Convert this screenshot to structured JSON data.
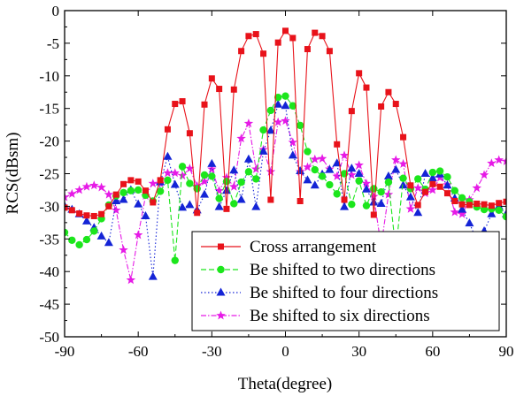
{
  "chart_data": {
    "type": "line",
    "title": "",
    "xlabel": "Theta(degree)",
    "ylabel": "RCS(dBsm)",
    "xlim": [
      -90,
      90
    ],
    "ylim": [
      -50,
      0
    ],
    "xticks": [
      -90,
      -60,
      -30,
      0,
      30,
      60,
      90
    ],
    "yticks": [
      0,
      -5,
      -10,
      -15,
      -20,
      -25,
      -30,
      -35,
      -40,
      -45,
      -50
    ],
    "xtick_labels": [
      "-90",
      "-60",
      "-30",
      "0",
      "30",
      "60",
      "90"
    ],
    "ytick_labels": [
      "0",
      "-5",
      "-10",
      "-15",
      "-20",
      "-25",
      "-30",
      "-35",
      "-40",
      "-45",
      "-50"
    ],
    "grid": false,
    "legend_position": "bottom-right",
    "series": [
      {
        "name": "Cross arrangement",
        "color": "#e8121a",
        "marker": "square",
        "line": "solid",
        "x": [
          -90,
          -87,
          -84,
          -81,
          -78,
          -75,
          -72,
          -69,
          -66,
          -63,
          -60,
          -57,
          -54,
          -51,
          -48,
          -45,
          -42,
          -39,
          -36,
          -33,
          -30,
          -27,
          -24,
          -21,
          -18,
          -15,
          -12,
          -9,
          -6,
          -3,
          0,
          3,
          6,
          9,
          12,
          15,
          18,
          21,
          24,
          27,
          30,
          33,
          36,
          39,
          42,
          45,
          48,
          51,
          54,
          57,
          60,
          63,
          66,
          69,
          72,
          75,
          78,
          81,
          84,
          87,
          90
        ],
        "y": [
          -30.2,
          -30.6,
          -31.1,
          -31.4,
          -31.5,
          -31.2,
          -30.0,
          -28.2,
          -26.6,
          -26.0,
          -26.2,
          -27.6,
          -29.4,
          -26.0,
          -18.2,
          -14.3,
          -13.9,
          -18.8,
          -31.0,
          -14.4,
          -10.4,
          -12.0,
          -30.4,
          -12.1,
          -6.2,
          -3.9,
          -3.6,
          -6.6,
          -29.0,
          -4.9,
          -3.1,
          -4.2,
          -29.2,
          -5.9,
          -3.4,
          -3.9,
          -6.2,
          -20.5,
          -29.0,
          -15.4,
          -9.6,
          -11.8,
          -31.3,
          -14.7,
          -12.5,
          -14.3,
          -19.4,
          -26.8,
          -29.8,
          -27.8,
          -26.6,
          -27.0,
          -28.0,
          -29.2,
          -29.7,
          -29.8,
          -29.6,
          -29.7,
          -29.9,
          -29.5,
          -29.3
        ]
      },
      {
        "name": "Be shifted to two directions",
        "color": "#1ce61c",
        "marker": "circle",
        "line": "dash",
        "x": [
          -90,
          -87,
          -84,
          -81,
          -78,
          -75,
          -72,
          -69,
          -66,
          -63,
          -60,
          -57,
          -54,
          -51,
          -48,
          -45,
          -42,
          -39,
          -36,
          -33,
          -30,
          -27,
          -24,
          -21,
          -18,
          -15,
          -12,
          -9,
          -6,
          -3,
          0,
          3,
          6,
          9,
          12,
          15,
          18,
          21,
          24,
          27,
          30,
          33,
          36,
          39,
          42,
          45,
          48,
          51,
          54,
          57,
          60,
          63,
          66,
          69,
          72,
          75,
          78,
          81,
          84,
          87,
          90
        ],
        "y": [
          -34.0,
          -35.2,
          -35.9,
          -35.1,
          -33.8,
          -31.9,
          -29.8,
          -28.4,
          -27.9,
          -27.6,
          -27.5,
          -28.3,
          -29.2,
          -27.7,
          -26.0,
          -38.3,
          -23.9,
          -26.5,
          -27.3,
          -25.2,
          -25.4,
          -28.8,
          -26.2,
          -29.6,
          -26.3,
          -24.7,
          -25.8,
          -18.3,
          -15.3,
          -13.3,
          -13.1,
          -14.6,
          -17.6,
          -21.6,
          -24.4,
          -25.4,
          -26.7,
          -28.1,
          -25.0,
          -29.7,
          -26.1,
          -29.9,
          -27.3,
          -27.8,
          -26.3,
          -36.8,
          -25.7,
          -27.3,
          -25.8,
          -27.4,
          -24.8,
          -24.6,
          -25.5,
          -27.6,
          -28.7,
          -29.3,
          -30.1,
          -30.5,
          -30.4,
          -30.6,
          -31.6
        ]
      },
      {
        "name": "Be shifted to four directions",
        "color": "#1424d6",
        "marker": "triangle",
        "line": "dot",
        "x": [
          -90,
          -87,
          -84,
          -81,
          -78,
          -75,
          -72,
          -69,
          -66,
          -63,
          -60,
          -57,
          -54,
          -51,
          -48,
          -45,
          -42,
          -39,
          -36,
          -33,
          -30,
          -27,
          -24,
          -21,
          -18,
          -15,
          -12,
          -9,
          -6,
          -3,
          0,
          3,
          6,
          9,
          12,
          15,
          18,
          21,
          24,
          27,
          30,
          33,
          36,
          39,
          42,
          45,
          48,
          51,
          54,
          57,
          60,
          63,
          66,
          69,
          72,
          75,
          78,
          81,
          84,
          87,
          90
        ],
        "y": [
          -30.0,
          -30.5,
          -31.2,
          -32.3,
          -33.3,
          -34.6,
          -35.6,
          -29.2,
          -29.0,
          -27.5,
          -29.7,
          -31.5,
          -40.8,
          -26.3,
          -22.4,
          -26.7,
          -30.2,
          -29.8,
          -30.6,
          -28.2,
          -23.5,
          -30.1,
          -27.6,
          -24.5,
          -29.0,
          -22.8,
          -30.1,
          -21.6,
          -18.4,
          -14.4,
          -14.6,
          -22.2,
          -24.6,
          -26.0,
          -26.8,
          -25.1,
          -24.4,
          -23.4,
          -30.1,
          -24.2,
          -25.0,
          -27.4,
          -29.4,
          -29.6,
          -25.4,
          -24.4,
          -26.8,
          -28.6,
          -31.0,
          -25.0,
          -25.7,
          -25.1,
          -26.8,
          -28.8,
          -30.5,
          -32.6,
          -35.2,
          -33.8,
          -31.2,
          -30.0,
          -31.2
        ]
      },
      {
        "name": "Be shifted to six directions",
        "color": "#e61ae6",
        "marker": "star",
        "line": "dashdot",
        "x": [
          -90,
          -87,
          -84,
          -81,
          -78,
          -75,
          -72,
          -69,
          -66,
          -63,
          -60,
          -57,
          -54,
          -51,
          -48,
          -45,
          -42,
          -39,
          -36,
          -33,
          -30,
          -27,
          -24,
          -21,
          -18,
          -15,
          -12,
          -9,
          -6,
          -3,
          0,
          3,
          6,
          9,
          12,
          15,
          18,
          21,
          24,
          27,
          30,
          33,
          36,
          39,
          42,
          45,
          48,
          51,
          54,
          57,
          60,
          63,
          66,
          69,
          72,
          75,
          78,
          81,
          84,
          87,
          90
        ],
        "y": [
          -28.6,
          -28.1,
          -27.5,
          -27.0,
          -26.8,
          -27.1,
          -28.2,
          -30.6,
          -36.7,
          -41.3,
          -34.4,
          -28.4,
          -26.5,
          -26.5,
          -24.9,
          -24.9,
          -25.3,
          -24.2,
          -26.9,
          -26.2,
          -24.3,
          -27.6,
          -25.6,
          -27.0,
          -19.6,
          -17.3,
          -24.3,
          -21.3,
          -24.7,
          -17.1,
          -16.9,
          -20.2,
          -24.7,
          -24.0,
          -22.8,
          -22.7,
          -24.3,
          -25.4,
          -22.2,
          -25.2,
          -23.7,
          -26.5,
          -28.5,
          -36.1,
          -28.2,
          -22.9,
          -23.5,
          -30.4,
          -27.2,
          -28.0,
          -27.5,
          -25.6,
          -26.7,
          -30.9,
          -31.2,
          -29.0,
          -27.2,
          -25.2,
          -23.4,
          -22.9,
          -23.1
        ]
      }
    ]
  }
}
